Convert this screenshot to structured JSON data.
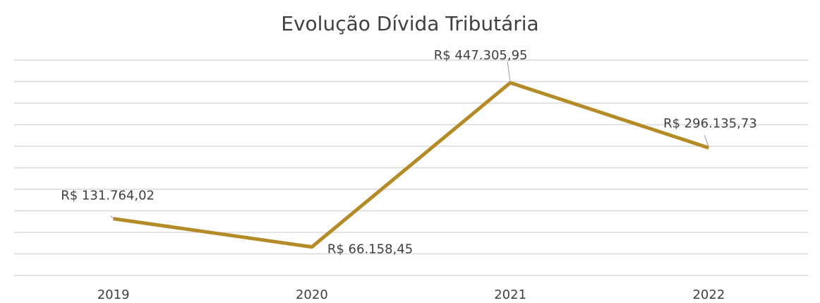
{
  "chart_data": {
    "type": "line",
    "title": "Evolução Dívida Tributária",
    "categories": [
      "2019",
      "2020",
      "2021",
      "2022"
    ],
    "series": [
      {
        "name": null,
        "color": "#b58b27",
        "values": [
          131764.02,
          66158.45,
          447305.95,
          296135.73
        ],
        "value_labels": [
          "R$ 131.764,02",
          "R$ 66.158,45",
          "R$ 447.305,95",
          "R$ 296.135,73"
        ]
      }
    ],
    "ylim": [
      0,
      500000
    ],
    "yticks": [
      0,
      50000,
      100000,
      150000,
      200000,
      250000,
      300000,
      350000,
      400000,
      450000,
      500000
    ],
    "grid": true
  }
}
